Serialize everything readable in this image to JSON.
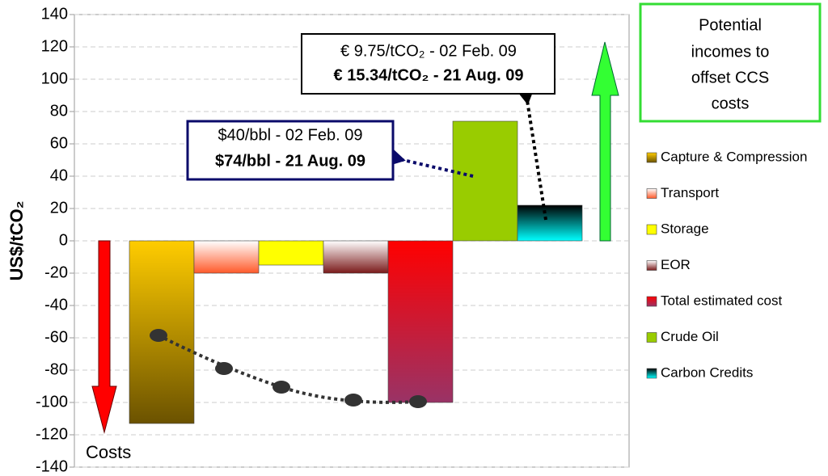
{
  "chart_data": {
    "type": "bar",
    "y_label": "US$/tCO₂",
    "ylim": [
      -140,
      140
    ],
    "yticks": [
      -140,
      -120,
      -100,
      -80,
      -60,
      -40,
      -20,
      0,
      20,
      40,
      60,
      80,
      100,
      120,
      140
    ],
    "grid": true,
    "legend": "right",
    "series": [
      {
        "name": "Capture & Compression",
        "color": [
          "#ffcc00",
          "#6b5200"
        ],
        "values": [
          -113
        ]
      },
      {
        "name": "Transport",
        "color": [
          "#ffffff",
          "#ff5a2a"
        ],
        "values": [
          -20
        ]
      },
      {
        "name": "Storage",
        "color": [
          "#ffff00",
          "#ffff00"
        ],
        "values": [
          -15
        ]
      },
      {
        "name": "EOR",
        "color": [
          "#ffffff",
          "#7a1a1a"
        ],
        "values": [
          -20
        ]
      },
      {
        "name": "Total estimated cost",
        "color": [
          "#ff0000",
          "#993366"
        ],
        "values": [
          -100
        ]
      },
      {
        "name": "Crude Oil",
        "color": [
          "#99cc00",
          "#99cc00"
        ],
        "values": [
          74
        ]
      },
      {
        "name": "Carbon Credits",
        "color": [
          "#000000",
          "#00ffff"
        ],
        "values": [
          22
        ]
      }
    ],
    "annotations": {
      "carbon_price": [
        "€ 9.75/tCO₂ - 02 Feb. 09",
        "€ 15.34/tCO₂ - 21 Aug. 09"
      ],
      "oil_price": [
        "$40/bbl - 02 Feb. 09",
        "$74/bbl - 21 Aug. 09"
      ],
      "incomes": [
        "Potential",
        "incomes to",
        "offset CCS",
        "costs"
      ],
      "costs": "Costs"
    }
  }
}
